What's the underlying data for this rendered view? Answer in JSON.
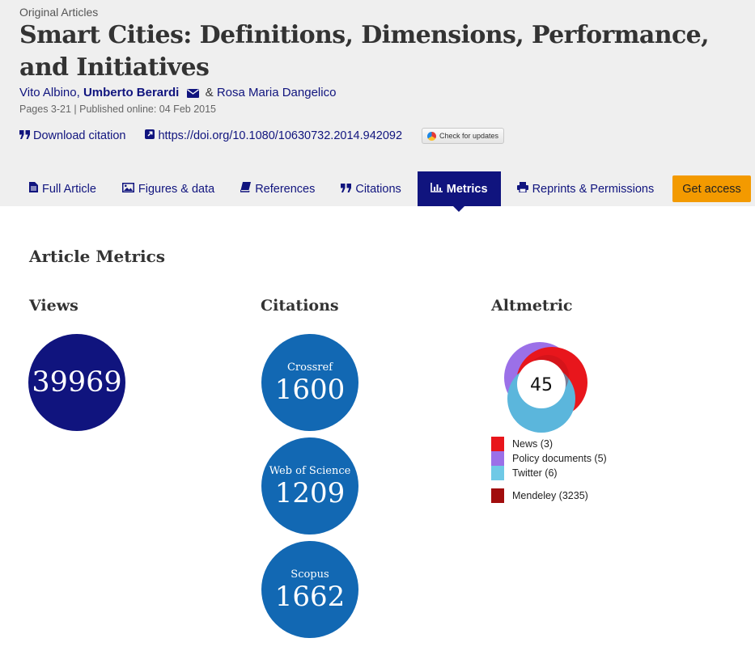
{
  "article": {
    "type": "Original Articles",
    "title": "Smart Cities: Definitions, Dimensions, Performance, and Initiatives",
    "authors": [
      "Vito Albino,",
      "Umberto Berardi",
      "&",
      "Rosa Maria Dangelico"
    ],
    "pages_published": "Pages 3-21 | Published online: 04 Feb 2015",
    "download_citation": "Download citation",
    "doi": "https://doi.org/10.1080/10630732.2014.942092",
    "check_updates": "Check for updates"
  },
  "tabs": [
    {
      "label": "Full Article",
      "icon": "document-icon"
    },
    {
      "label": "Figures & data",
      "icon": "image-icon"
    },
    {
      "label": "References",
      "icon": "book-icon"
    },
    {
      "label": "Citations",
      "icon": "quote-icon"
    },
    {
      "label": "Metrics",
      "icon": "bar-chart-icon",
      "active": true
    },
    {
      "label": "Reprints & Permissions",
      "icon": "print-icon"
    }
  ],
  "get_access": "Get access",
  "metrics": {
    "heading": "Article Metrics",
    "views": {
      "heading": "Views",
      "value": "39969"
    },
    "citations": {
      "heading": "Citations",
      "items": [
        {
          "source": "Crossref",
          "value": "1600"
        },
        {
          "source": "Web of Science",
          "value": "1209"
        },
        {
          "source": "Scopus",
          "value": "1662"
        }
      ]
    },
    "altmetric": {
      "heading": "Altmetric",
      "score": "45",
      "legend": [
        {
          "label": "News (3)",
          "color": "#e8161c"
        },
        {
          "label": "Policy documents (5)",
          "color": "#9b70e8"
        },
        {
          "label": "Twitter (6)",
          "color": "#6fc9e6"
        },
        {
          "label": "Mendeley (3235)",
          "color": "#a10d0d"
        }
      ]
    }
  },
  "colors": {
    "brand": "#10147e",
    "citation_circle": "#1268b3",
    "access_button": "#f39a00"
  }
}
